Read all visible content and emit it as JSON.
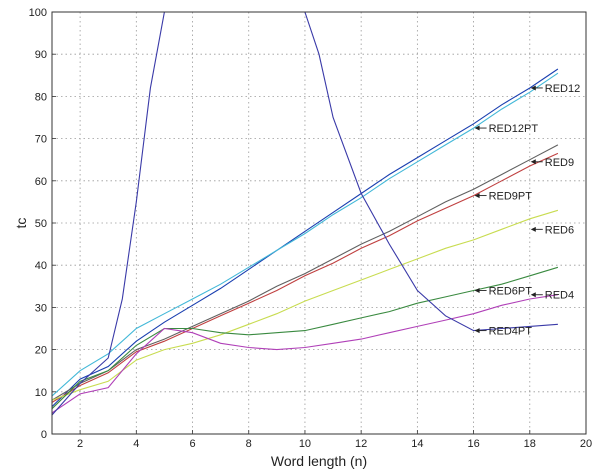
{
  "chart_data": {
    "type": "line",
    "title": "",
    "xlabel": "Word length (n)",
    "ylabel": "tᴄ",
    "xlim": [
      1,
      20
    ],
    "ylim": [
      0,
      100
    ],
    "xticks": [
      2,
      4,
      6,
      8,
      10,
      12,
      14,
      16,
      18,
      20
    ],
    "yticks": [
      0,
      10,
      20,
      30,
      40,
      50,
      60,
      70,
      80,
      90,
      100
    ],
    "grid": true,
    "series": [
      {
        "name": "RED12",
        "color": "#1a3fb0",
        "x": [
          1,
          2,
          3,
          4,
          5,
          6,
          7,
          8,
          9,
          10,
          11,
          12,
          13,
          14,
          15,
          16,
          17,
          18,
          19
        ],
        "y": [
          6.5,
          13,
          16,
          22,
          26.5,
          30.5,
          34.5,
          39,
          43.5,
          48,
          52.5,
          57,
          61.5,
          65.5,
          69.5,
          73.5,
          78,
          82,
          86.5
        ],
        "label_x": 18,
        "label_y": 82
      },
      {
        "name": "RED12PT",
        "color": "#42b8d8",
        "x": [
          1,
          2,
          3,
          4,
          5,
          6,
          7,
          8,
          9,
          10,
          11,
          12,
          13,
          14,
          15,
          16,
          17,
          18,
          19
        ],
        "y": [
          9,
          15,
          19,
          25,
          28.5,
          32,
          35.5,
          39.5,
          43.5,
          47.5,
          52,
          56,
          60.5,
          64.5,
          68.5,
          72.5,
          77,
          81,
          85.5
        ],
        "label_x": 16,
        "label_y": 72.5
      },
      {
        "name": "RED9",
        "color": "#606060",
        "x": [
          1,
          2,
          3,
          4,
          5,
          6,
          7,
          8,
          9,
          10,
          11,
          12,
          13,
          14,
          15,
          16,
          17,
          18,
          19
        ],
        "y": [
          8,
          12,
          15,
          20,
          22.5,
          25.5,
          28.5,
          31.5,
          35,
          38,
          41.5,
          45,
          48,
          51.5,
          55,
          58,
          61.5,
          65,
          68.5
        ],
        "label_x": 18,
        "label_y": 64.5
      },
      {
        "name": "RED9PT",
        "color": "#c04040",
        "x": [
          1,
          2,
          3,
          4,
          5,
          6,
          7,
          8,
          9,
          10,
          11,
          12,
          13,
          14,
          15,
          16,
          17,
          18,
          19
        ],
        "y": [
          7.5,
          11.5,
          14.5,
          19.5,
          22,
          25,
          28,
          31,
          34,
          37.5,
          40.5,
          44,
          47,
          50.5,
          53.5,
          56.5,
          60,
          63.5,
          66.5
        ],
        "label_x": 16,
        "label_y": 56.5
      },
      {
        "name": "RED6",
        "color": "#c8dc50",
        "x": [
          1,
          2,
          3,
          4,
          5,
          6,
          7,
          8,
          9,
          10,
          11,
          12,
          13,
          14,
          15,
          16,
          17,
          18,
          19
        ],
        "y": [
          8,
          10.5,
          12.5,
          17.5,
          20,
          21.5,
          23.5,
          26,
          28.5,
          31.5,
          34,
          36.5,
          39,
          41.5,
          44,
          46,
          48.5,
          51,
          53
        ],
        "label_x": 18,
        "label_y": 48.5
      },
      {
        "name": "RED6PT",
        "color": "#3a8a40",
        "x": [
          1,
          2,
          3,
          4,
          5,
          6,
          7,
          8,
          9,
          10,
          11,
          12,
          13,
          14,
          15,
          16,
          17,
          18,
          19
        ],
        "y": [
          6,
          12.5,
          15,
          21,
          25,
          25,
          24,
          23.5,
          24,
          24.5,
          26,
          27.5,
          29,
          31,
          32.5,
          34,
          35.5,
          37.5,
          39.5
        ],
        "label_x": 16,
        "label_y": 34
      },
      {
        "name": "RED4",
        "color": "#b040b8",
        "x": [
          1,
          2,
          3,
          4,
          5,
          6,
          7,
          8,
          9,
          10,
          11,
          12,
          13,
          14,
          15,
          16,
          17,
          18,
          19
        ],
        "y": [
          5,
          9.5,
          11,
          19,
          25,
          24,
          21.5,
          20.5,
          20,
          20.5,
          21.5,
          22.5,
          24,
          25.5,
          27,
          28.5,
          30.5,
          32,
          33
        ],
        "label_x": 18,
        "label_y": 33
      },
      {
        "name": "RED4PT",
        "color": "#3a3aa8",
        "x": [
          1,
          2,
          3,
          3.5,
          4,
          4.5,
          5,
          10,
          10.5,
          11,
          12,
          13,
          14,
          15,
          16,
          17,
          18,
          19
        ],
        "y": [
          4.5,
          12,
          18,
          32,
          55,
          82,
          100,
          100,
          90,
          75,
          57,
          45,
          34,
          28,
          24.5,
          25,
          25.5,
          26
        ],
        "label_x": 16,
        "label_y": 24.5
      }
    ]
  }
}
